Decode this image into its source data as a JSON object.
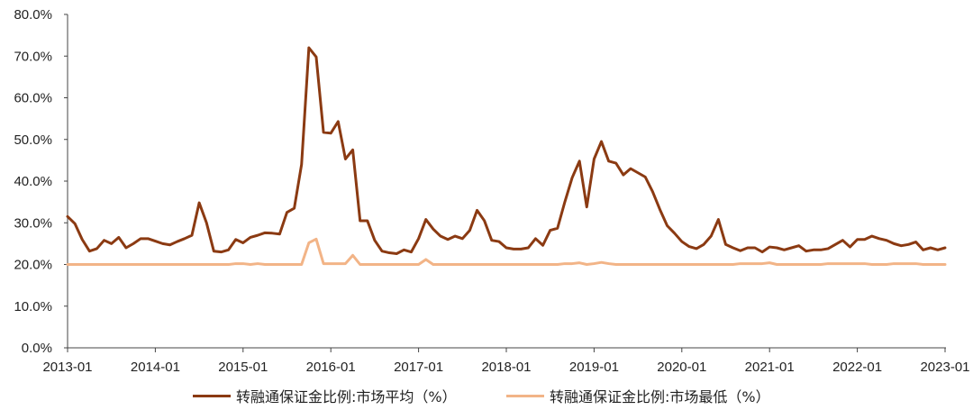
{
  "chart_data": {
    "type": "line",
    "title": "",
    "xlabel": "",
    "ylabel": "",
    "ylim": [
      0,
      80
    ],
    "y_ticks": [
      "0.0%",
      "10.0%",
      "20.0%",
      "30.0%",
      "40.0%",
      "50.0%",
      "60.0%",
      "70.0%",
      "80.0%"
    ],
    "x_ticks": [
      "2013-01",
      "2014-01",
      "2015-01",
      "2016-01",
      "2017-01",
      "2018-01",
      "2019-01",
      "2020-01",
      "2021-01",
      "2022-01",
      "2023-01"
    ],
    "x_start": "2013-01",
    "legend_position": "bottom",
    "grid": false,
    "series": [
      {
        "name": "转融通保证金比例:市场平均（%）",
        "color": "#8B3A12",
        "values": [
          31.5,
          29.8,
          26.0,
          23.2,
          23.8,
          25.8,
          25.0,
          26.5,
          24.0,
          25.0,
          26.2,
          26.2,
          25.6,
          25.0,
          24.7,
          25.5,
          26.2,
          27.0,
          34.8,
          30.0,
          23.2,
          23.0,
          23.5,
          26.0,
          25.2,
          26.5,
          27.0,
          27.6,
          27.5,
          27.3,
          32.5,
          33.5,
          44.0,
          72.0,
          69.8,
          51.7,
          51.5,
          54.3,
          45.3,
          47.5,
          30.5,
          30.5,
          25.8,
          23.2,
          22.8,
          22.6,
          23.5,
          23.0,
          26.2,
          30.8,
          28.5,
          26.8,
          26.0,
          26.8,
          26.2,
          28.2,
          33.0,
          30.5,
          25.8,
          25.5,
          24.0,
          23.7,
          23.7,
          24.0,
          26.2,
          24.6,
          28.2,
          28.7,
          35.0,
          40.8,
          44.8,
          33.8,
          45.3,
          49.5,
          44.8,
          44.3,
          41.5,
          43.0,
          42.0,
          41.0,
          37.5,
          33.2,
          29.3,
          27.5,
          25.5,
          24.3,
          23.8,
          24.8,
          26.8,
          30.8,
          24.8,
          24.0,
          23.3,
          24.0,
          24.0,
          23.0,
          24.2,
          24.0,
          23.5,
          24.0,
          24.5,
          23.2,
          23.5,
          23.5,
          23.8,
          24.8,
          25.8,
          24.2,
          26.0,
          26.0,
          26.8,
          26.2,
          25.8,
          25.0,
          24.5,
          24.8,
          25.4,
          23.5,
          24.0,
          23.5,
          24.0
        ]
      },
      {
        "name": "转融通保证金比例:市场最低（%）",
        "color": "#F2B487",
        "values": [
          20,
          20,
          20,
          20,
          20,
          20,
          20,
          20,
          20,
          20,
          20,
          20,
          20,
          20,
          20,
          20,
          20,
          20,
          20,
          20,
          20,
          20,
          20,
          20.2,
          20.2,
          20,
          20.2,
          20,
          20,
          20,
          20,
          20,
          20,
          25.2,
          26.1,
          20.2,
          20.2,
          20.2,
          20.2,
          22.2,
          20,
          20,
          20,
          20,
          20,
          20,
          20,
          20,
          20,
          21.2,
          20,
          20,
          20,
          20,
          20,
          20,
          20,
          20,
          20,
          20,
          20,
          20,
          20,
          20,
          20,
          20,
          20,
          20,
          20.2,
          20.2,
          20.4,
          20,
          20.2,
          20.5,
          20.2,
          20,
          20,
          20,
          20,
          20,
          20,
          20,
          20,
          20,
          20,
          20,
          20,
          20,
          20,
          20,
          20,
          20,
          20.2,
          20.2,
          20.2,
          20.2,
          20.4,
          20,
          20,
          20,
          20,
          20,
          20,
          20,
          20.2,
          20.2,
          20.2,
          20.2,
          20.2,
          20.2,
          20,
          20,
          20,
          20.2,
          20.2,
          20.2,
          20.2,
          20,
          20,
          20,
          20
        ]
      }
    ]
  }
}
